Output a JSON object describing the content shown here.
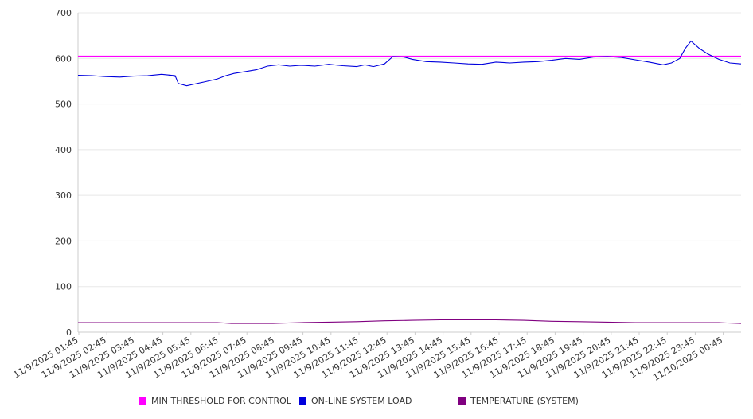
{
  "chart_data": {
    "type": "line",
    "title": "",
    "xlabel": "",
    "ylabel": "",
    "ylim": [
      0,
      700
    ],
    "yticks": [
      0,
      100,
      200,
      300,
      400,
      500,
      600,
      700
    ],
    "grid": true,
    "legend_position": "bottom",
    "x_tick_labels": [
      "11/9/2025 01:45",
      "11/9/2025 02:45",
      "11/9/2025 03:45",
      "11/9/2025 04:45",
      "11/9/2025 05:45",
      "11/9/2025 06:45",
      "11/9/2025 07:45",
      "11/9/2025 08:45",
      "11/9/2025 09:45",
      "11/9/2025 10:45",
      "11/9/2025 11:45",
      "11/9/2025 12:45",
      "11/9/2025 13:45",
      "11/9/2025 14:45",
      "11/9/2025 15:45",
      "11/9/2025 16:45",
      "11/9/2025 17:45",
      "11/9/2025 18:45",
      "11/9/2025 19:45",
      "11/9/2025 20:45",
      "11/9/2025 21:45",
      "11/9/2025 22:45",
      "11/9/2025 23:45",
      "11/10/2025 00:45"
    ],
    "x_range_hours": [
      0,
      23.8
    ],
    "series": [
      {
        "name": "MIN THRESHOLD FOR CONTROL",
        "color": "#ff00ff",
        "points": [
          [
            0,
            605
          ],
          [
            23.8,
            605
          ]
        ]
      },
      {
        "name": "ON-LINE SYSTEM LOAD",
        "color": "#0000dd",
        "points": [
          [
            0,
            563
          ],
          [
            0.5,
            562
          ],
          [
            1,
            560
          ],
          [
            1.5,
            559
          ],
          [
            2,
            561
          ],
          [
            2.5,
            562
          ],
          [
            3,
            565
          ],
          [
            3.5,
            562
          ],
          [
            3.25,
            563
          ],
          [
            3.5,
            560
          ],
          [
            3.6,
            545
          ],
          [
            3.9,
            540
          ],
          [
            4.2,
            544
          ],
          [
            4.5,
            548
          ],
          [
            5,
            555
          ],
          [
            5.3,
            562
          ],
          [
            5.6,
            567
          ],
          [
            6,
            571
          ],
          [
            6.4,
            575
          ],
          [
            6.8,
            583
          ],
          [
            7.2,
            586
          ],
          [
            7.6,
            583
          ],
          [
            8,
            585
          ],
          [
            8.5,
            583
          ],
          [
            9,
            587
          ],
          [
            9.5,
            584
          ],
          [
            10,
            582
          ],
          [
            10.3,
            586
          ],
          [
            10.6,
            582
          ],
          [
            11,
            588
          ],
          [
            11.3,
            604
          ],
          [
            11.7,
            603
          ],
          [
            12,
            598
          ],
          [
            12.5,
            593
          ],
          [
            13,
            592
          ],
          [
            13.5,
            590
          ],
          [
            14,
            588
          ],
          [
            14.5,
            587
          ],
          [
            15,
            592
          ],
          [
            15.5,
            590
          ],
          [
            16,
            592
          ],
          [
            16.5,
            593
          ],
          [
            17,
            596
          ],
          [
            17.5,
            600
          ],
          [
            18,
            598
          ],
          [
            18.5,
            603
          ],
          [
            19,
            604
          ],
          [
            19.5,
            602
          ],
          [
            20,
            597
          ],
          [
            20.5,
            592
          ],
          [
            21,
            586
          ],
          [
            21.3,
            590
          ],
          [
            21.6,
            600
          ],
          [
            21.8,
            622
          ],
          [
            22,
            638
          ],
          [
            22.3,
            622
          ],
          [
            22.6,
            610
          ],
          [
            23,
            598
          ],
          [
            23.4,
            590
          ],
          [
            23.8,
            588
          ]
        ]
      },
      {
        "name": "TEMPERATURE (SYSTEM)",
        "color": "#800080",
        "points": [
          [
            0,
            21
          ],
          [
            5,
            21
          ],
          [
            5.5,
            19
          ],
          [
            7,
            19
          ],
          [
            8,
            21
          ],
          [
            9,
            22
          ],
          [
            10,
            23
          ],
          [
            11,
            25
          ],
          [
            12,
            26
          ],
          [
            13,
            27
          ],
          [
            15,
            27
          ],
          [
            16,
            26
          ],
          [
            17,
            24
          ],
          [
            18,
            23
          ],
          [
            19,
            22
          ],
          [
            20,
            21
          ],
          [
            22,
            21
          ],
          [
            23,
            21
          ],
          [
            23.3,
            20
          ],
          [
            23.8,
            19
          ]
        ]
      }
    ]
  }
}
